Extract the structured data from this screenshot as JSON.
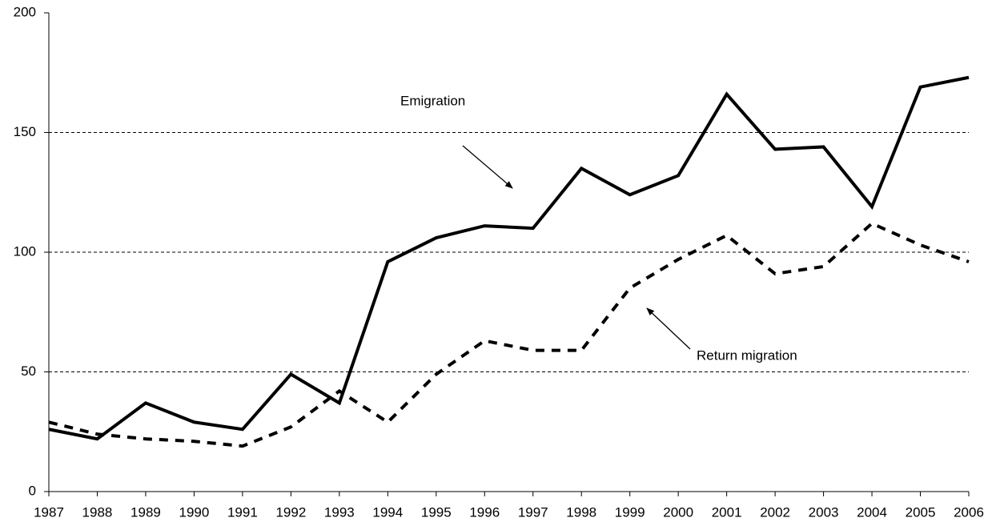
{
  "chart_data": {
    "type": "line",
    "x": [
      1987,
      1988,
      1989,
      1990,
      1991,
      1992,
      1993,
      1994,
      1995,
      1996,
      1997,
      1998,
      1999,
      2000,
      2001,
      2002,
      2003,
      2004,
      2005,
      2006
    ],
    "series": [
      {
        "name": "Emigration",
        "color": "#000000",
        "style": "solid",
        "values": [
          26,
          22,
          37,
          29,
          26,
          49,
          37,
          96,
          106,
          111,
          110,
          135,
          124,
          132,
          166,
          143,
          144,
          119,
          169,
          173
        ]
      },
      {
        "name": "Return migration",
        "color": "#000000",
        "style": "dashed",
        "values": [
          29,
          24,
          22,
          21,
          19,
          27,
          42,
          29,
          49,
          63,
          59,
          59,
          85,
          97,
          107,
          91,
          94,
          112,
          103,
          96
        ]
      }
    ],
    "xlim": [
      1987,
      2006
    ],
    "xticks": [
      1987,
      1988,
      1989,
      1990,
      1991,
      1992,
      1993,
      1994,
      1995,
      1996,
      1997,
      1998,
      1999,
      2000,
      2001,
      2002,
      2003,
      2004,
      2005,
      2006
    ],
    "ylim": [
      0,
      200
    ],
    "yticks": [
      0,
      50,
      100,
      150,
      200
    ],
    "grid": true
  }
}
